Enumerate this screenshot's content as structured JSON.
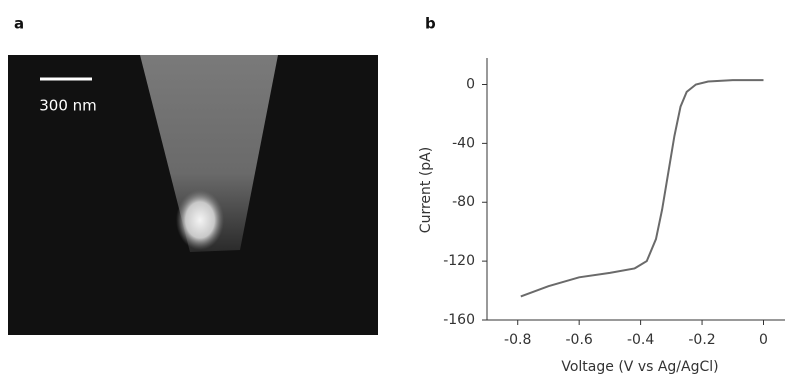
{
  "panel_labels": [
    "a",
    "b"
  ],
  "scale_bar_label": "300 nm",
  "chart_data": {
    "type": "line",
    "x_label": "Voltage (V vs Ag/AgCl)",
    "y_label": "Current (pA)",
    "x": [
      -0.79,
      -0.7,
      -0.6,
      -0.5,
      -0.42,
      -0.38,
      -0.35,
      -0.33,
      -0.31,
      -0.29,
      -0.27,
      -0.25,
      -0.22,
      -0.18,
      -0.1,
      -0.02,
      0
    ],
    "series": [
      {
        "color": "#6a6a6a",
        "values": [
          -144,
          -137,
          -131,
          -128,
          -125,
          -120,
          -105,
          -85,
          -60,
          -35,
          -15,
          -5,
          0,
          2,
          3,
          3,
          3
        ]
      }
    ],
    "xlim": [
      -0.9,
      0.07
    ],
    "ylim": [
      -160,
      18
    ],
    "xticks": [
      -0.8,
      -0.6,
      -0.4,
      -0.2,
      0
    ],
    "yticks": [
      -160,
      -120,
      -80,
      -40,
      0
    ]
  }
}
